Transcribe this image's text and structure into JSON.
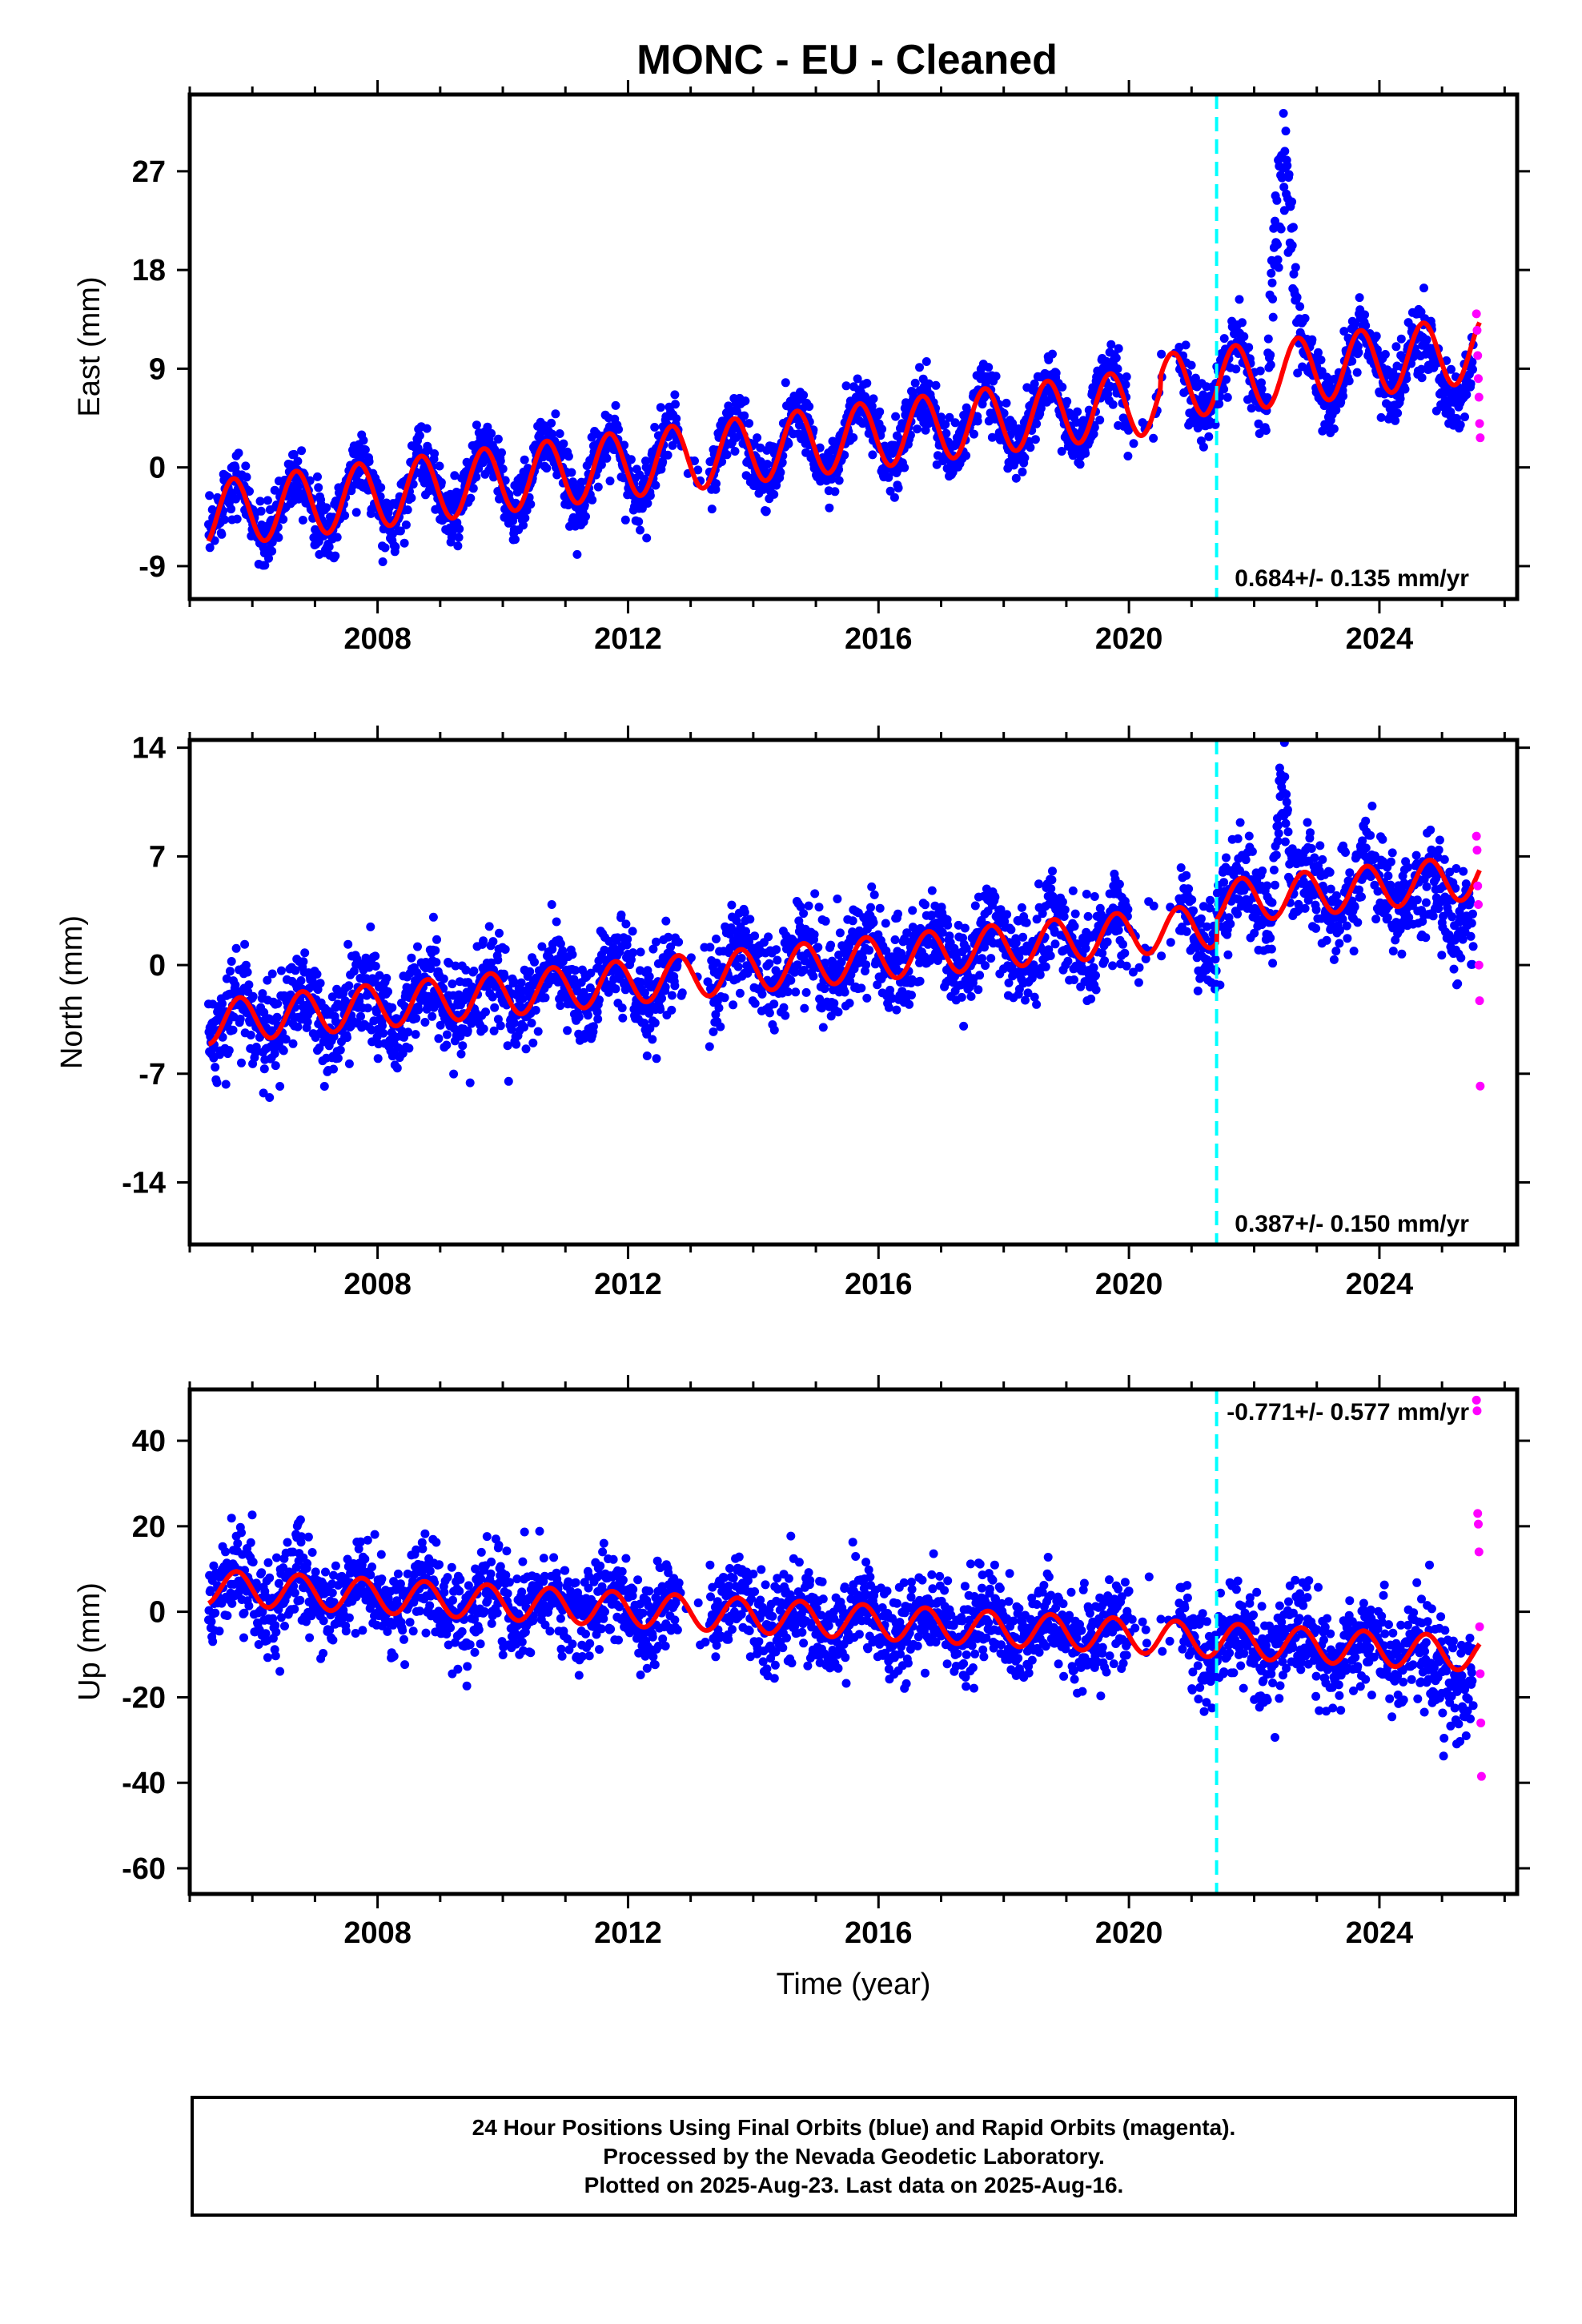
{
  "title": "MONC  - EU - Cleaned",
  "colors": {
    "final_orbits": "#0000ff",
    "rapid_orbits": "#ff00ff",
    "model": "#ff0000",
    "event_line": "#00ffff",
    "frame": "#000000"
  },
  "footer": {
    "line1": "24 Hour Positions Using Final Orbits (blue) and Rapid Orbits (magenta).",
    "line2": "Processed by the Nevada Geodetic Laboratory.",
    "line3": "Plotted on 2025-Aug-23. Last data on 2025-Aug-16."
  },
  "chart_data": [
    {
      "type": "scatter",
      "ylabel": "East (mm)",
      "xlabel": "",
      "xlim": [
        2005.0,
        2026.2
      ],
      "ylim": [
        -12,
        34
      ],
      "xticks": [
        2008,
        2012,
        2016,
        2020,
        2024
      ],
      "yticks": [
        -9,
        0,
        9,
        18,
        27
      ],
      "annotation": "0.684+/- 0.135 mm/yr",
      "annotation_position": "bottom-right",
      "event_line_x": 2021.4,
      "model": {
        "offset_at_2005": -4.5,
        "rate_mm_yr": 0.684,
        "annual_amplitude": 3.0,
        "annual_phase_year_fraction": 0.45,
        "scatter_sd": 1.4,
        "segments": [
          {
            "from": 2005.3,
            "to": 2020.5,
            "base_shift": 0
          },
          {
            "from": 2020.5,
            "to": 2025.6,
            "base_shift": 1.2
          }
        ],
        "transient": {
          "from": 2022.2,
          "to": 2022.7,
          "peak": 33.0
        }
      },
      "rapid_points": [
        [
          2025.55,
          14.0
        ],
        [
          2025.56,
          12.5
        ],
        [
          2025.57,
          10.2
        ],
        [
          2025.58,
          8.1
        ],
        [
          2025.59,
          6.4
        ],
        [
          2025.6,
          4.0
        ],
        [
          2025.61,
          2.7
        ]
      ]
    },
    {
      "type": "scatter",
      "ylabel": "North (mm)",
      "xlabel": "",
      "xlim": [
        2005.0,
        2026.2
      ],
      "ylim": [
        -18,
        14.5
      ],
      "xticks": [
        2008,
        2012,
        2016,
        2020,
        2024
      ],
      "yticks": [
        -14,
        -7,
        0,
        7,
        14
      ],
      "annotation": "0.387+/- 0.150 mm/yr",
      "annotation_position": "bottom-right",
      "event_line_x": 2021.4,
      "model": {
        "offset_at_2005": -3.8,
        "rate_mm_yr": 0.387,
        "annual_amplitude": 1.4,
        "annual_phase_year_fraction": 0.55,
        "scatter_sd": 1.5,
        "segments": [
          {
            "from": 2005.3,
            "to": 2021.4,
            "base_shift": 0
          },
          {
            "from": 2021.4,
            "to": 2025.6,
            "base_shift": 1.5
          }
        ],
        "transient": {
          "from": 2022.3,
          "to": 2022.6,
          "peak": 13.8
        }
      },
      "rapid_points": [
        [
          2025.55,
          8.3
        ],
        [
          2025.56,
          7.4
        ],
        [
          2025.57,
          5.1
        ],
        [
          2025.58,
          3.9
        ],
        [
          2025.59,
          0.0
        ],
        [
          2025.6,
          -2.3
        ],
        [
          2025.61,
          -7.8
        ]
      ]
    },
    {
      "type": "scatter",
      "ylabel": "Up (mm)",
      "xlabel": "Time (year)",
      "xlim": [
        2005.0,
        2026.2
      ],
      "ylim": [
        -66,
        52
      ],
      "xticks": [
        2008,
        2012,
        2016,
        2020,
        2024
      ],
      "yticks": [
        -60,
        -40,
        -20,
        0,
        20,
        40
      ],
      "annotation": "-0.771+/- 0.577 mm/yr",
      "annotation_position": "top-right",
      "event_line_x": 2021.4,
      "model": {
        "offset_at_2005": 6.0,
        "rate_mm_yr": -0.771,
        "annual_amplitude": 4.0,
        "annual_phase_year_fraction": 0.5,
        "scatter_sd": 5.5,
        "segments": [
          {
            "from": 2005.3,
            "to": 2025.6,
            "base_shift": 0
          }
        ],
        "transient": null
      },
      "rapid_points": [
        [
          2025.55,
          49.5
        ],
        [
          2025.56,
          47.0
        ],
        [
          2025.57,
          23.0
        ],
        [
          2025.58,
          20.5
        ],
        [
          2025.59,
          14.0
        ],
        [
          2025.6,
          -3.5
        ],
        [
          2025.61,
          -14.5
        ],
        [
          2025.62,
          -26.0
        ],
        [
          2025.63,
          -38.5
        ]
      ]
    }
  ]
}
